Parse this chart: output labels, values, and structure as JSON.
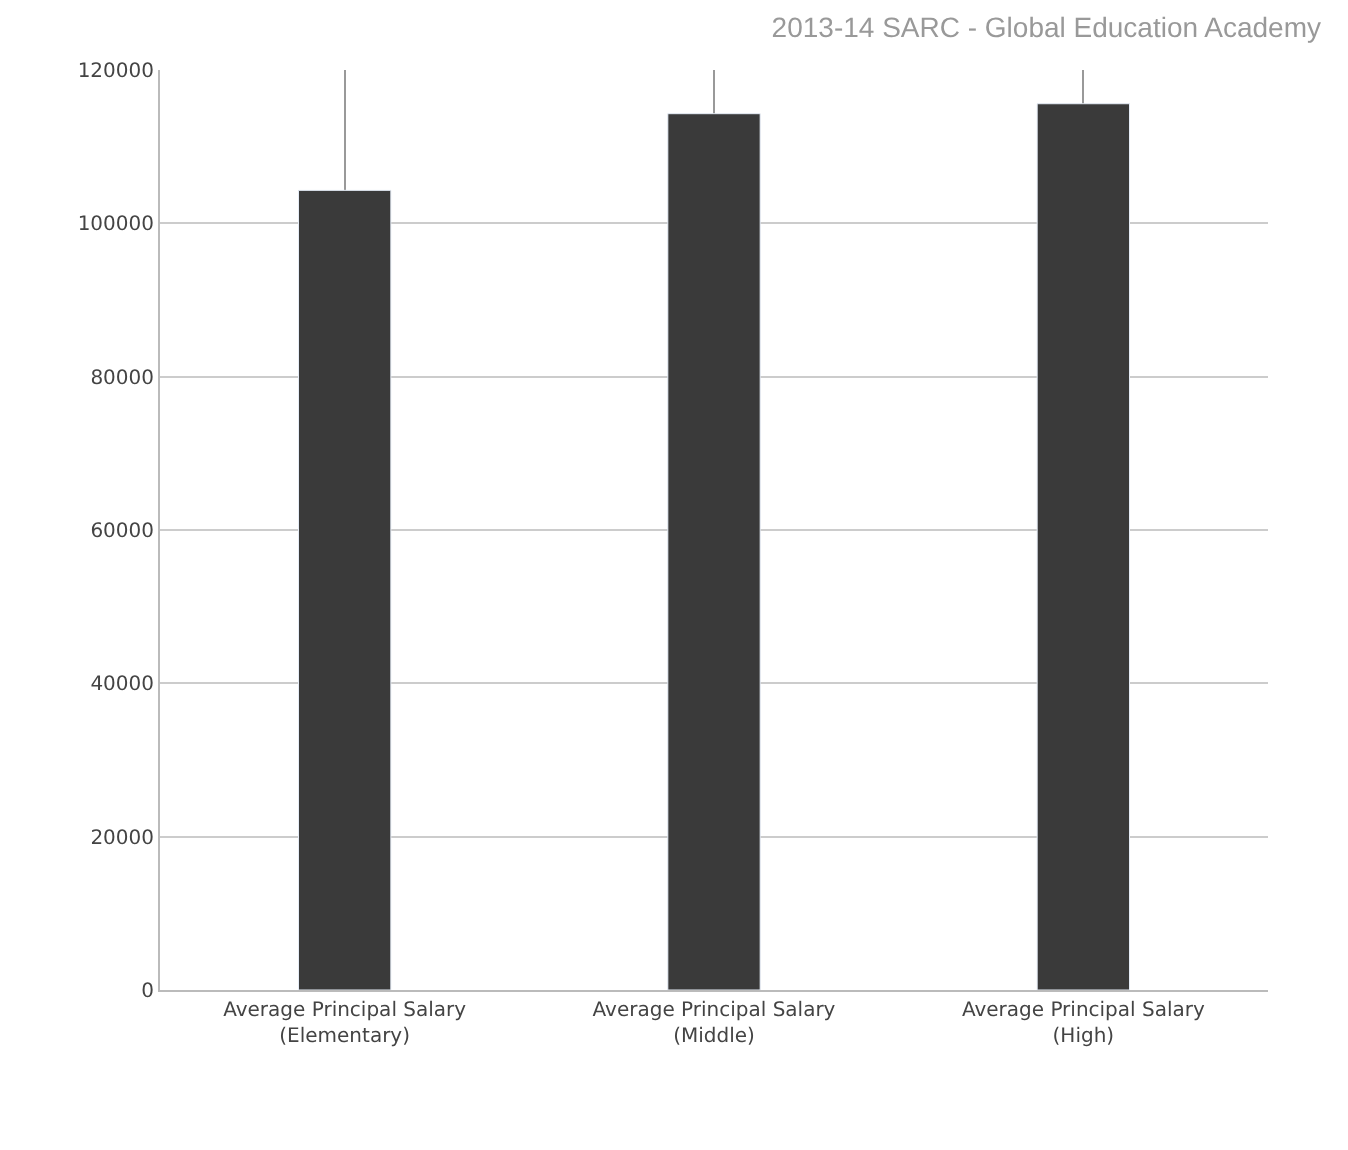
{
  "chart_data": {
    "type": "bar",
    "title": "2013-14 SARC - Global Education Academy",
    "categories": [
      "Average Principal Salary\n(Elementary)",
      "Average Principal Salary\n(Middle)",
      "Average Principal Salary\n(High)"
    ],
    "values": [
      104300,
      114300,
      115600
    ],
    "color": "#3a3a3a",
    "ylim": [
      0,
      120000
    ],
    "yticks": [
      0,
      20000,
      40000,
      60000,
      80000,
      100000,
      120000
    ],
    "grid": true
  }
}
